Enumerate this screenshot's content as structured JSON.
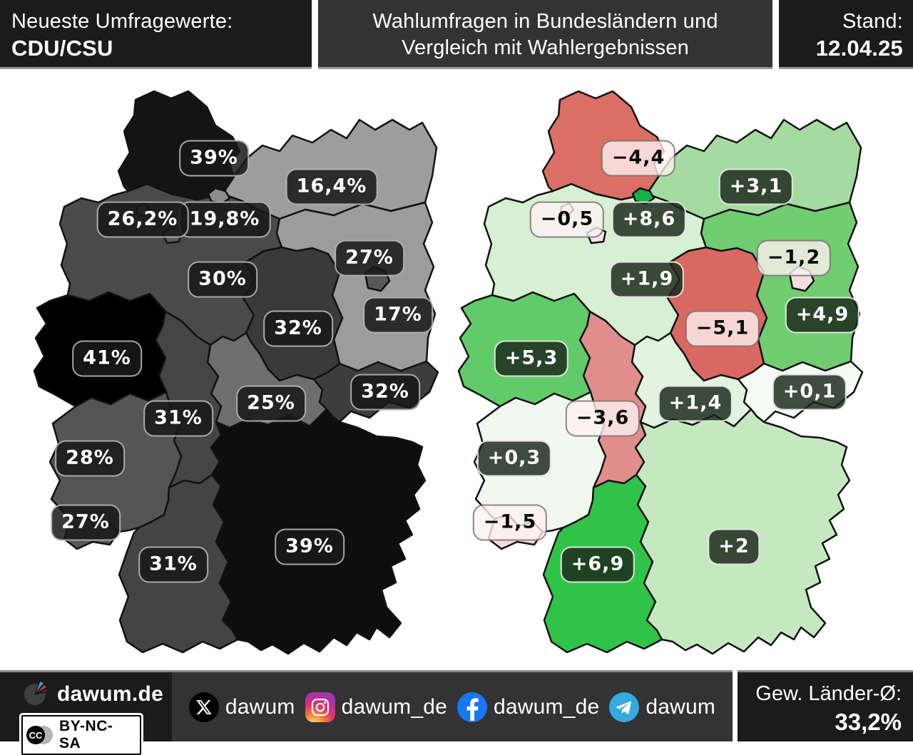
{
  "header": {
    "left_line1": "Neueste Umfragewerte:",
    "left_line2": "CDU/CSU",
    "center_line1": "Wahlumfragen in Bundesländern und",
    "center_line2": "Vergleich mit Wahlergebnissen",
    "right_line1": "Stand:",
    "right_line2": "12.04.25"
  },
  "states": {
    "sh": {
      "poll": "39%",
      "poll_color": "#141414",
      "diff": "−4,4",
      "diff_color": "#db6f66"
    },
    "mv": {
      "poll": "16,4%",
      "poll_color": "#9d9d9d",
      "diff": "+3,1",
      "diff_color": "#a5dba1"
    },
    "ni": {
      "poll": "30%",
      "poll_color": "#4a4a4a",
      "diff": "+1,9",
      "diff_color": "#d7efd3"
    },
    "hb": {
      "poll": "26,2%",
      "poll_color": "#5b5b5b",
      "diff": "−0,5",
      "diff_color": "#f9e4e6"
    },
    "hh": {
      "poll": "19,8%",
      "poll_color": "#8c8c8c",
      "diff": "+8,6",
      "diff_color": "#10b545"
    },
    "be": {
      "poll": "27%",
      "poll_color": "#575757",
      "diff": "−1,2",
      "diff_color": "#f8dde0"
    },
    "bb": {
      "poll": "17%",
      "poll_color": "#9c9c9c",
      "diff": "+4,9",
      "diff_color": "#70cd70"
    },
    "st": {
      "poll": "32%",
      "poll_color": "#3a3a3a",
      "diff": "−5,1",
      "diff_color": "#da6862"
    },
    "nw": {
      "poll": "41%",
      "poll_color": "#000000",
      "diff": "+5,3",
      "diff_color": "#62cb69"
    },
    "sn": {
      "poll": "32%",
      "poll_color": "#3d3d3d",
      "diff": "+0,1",
      "diff_color": "#f7fbf5"
    },
    "he": {
      "poll": "31%",
      "poll_color": "#454545",
      "diff": "−3,6",
      "diff_color": "#e08e8b"
    },
    "th": {
      "poll": "25%",
      "poll_color": "#6e6e6e",
      "diff": "+1,4",
      "diff_color": "#e2f3df"
    },
    "rp": {
      "poll": "28%",
      "poll_color": "#545454",
      "diff": "+0,3",
      "diff_color": "#f1f9ee"
    },
    "sl": {
      "poll": "27%",
      "poll_color": "#575757",
      "diff": "−1,5",
      "diff_color": "#f6d9d6"
    },
    "bw": {
      "poll": "31%",
      "poll_color": "#444444",
      "diff": "+6,9",
      "diff_color": "#2fc447"
    },
    "by": {
      "poll": "39%",
      "poll_color": "#0e0e0e",
      "diff": "+2",
      "diff_color": "#c6e8c1"
    }
  },
  "footer": {
    "brand": "dawum.de",
    "license": "BY-NC-SA",
    "socials": [
      {
        "network": "x",
        "handle": "dawum",
        "color": "#000000"
      },
      {
        "network": "instagram",
        "handle": "dawum_de",
        "color": "#e1306c"
      },
      {
        "network": "facebook",
        "handle": "dawum_de",
        "color": "#1877f2"
      },
      {
        "network": "telegram",
        "handle": "dawum",
        "color": "#34aadf"
      }
    ],
    "average_label": "Gew. Länder-Ø:",
    "average_value": "33,2%"
  }
}
